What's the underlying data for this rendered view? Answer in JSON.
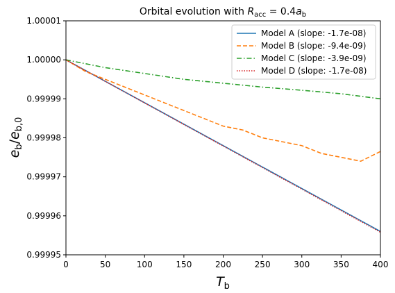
{
  "chart_data": {
    "type": "line",
    "title_prefix": "Orbital evolution with ",
    "title_math": "R_acc = 0.4a_b",
    "xlabel": "T_b",
    "ylabel": "e_b/e_b,0",
    "xlim": [
      0,
      400
    ],
    "ylim": [
      0.99995,
      1.00001
    ],
    "xticks": [
      0,
      50,
      100,
      150,
      200,
      250,
      300,
      350,
      400
    ],
    "yticks": [
      0.99995,
      0.99996,
      0.99997,
      0.99998,
      0.99999,
      1.0,
      1.00001
    ],
    "ytick_labels": [
      "0.99995",
      "0.99996",
      "0.99997",
      "0.99998",
      "0.99999",
      "1.00000",
      "1.00001"
    ],
    "grid": false,
    "legend_position": "top-right",
    "series": [
      {
        "name": "Model A (slope: -1.7e-08)",
        "color": "#1f77b4",
        "style": "solid",
        "x": [
          0,
          400
        ],
        "y": [
          1.0,
          0.999956
        ]
      },
      {
        "name": "Model B (slope: -9.4e-09)",
        "color": "#ff7f0e",
        "style": "dashed",
        "x": [
          0,
          25,
          50,
          75,
          100,
          125,
          150,
          175,
          200,
          225,
          250,
          275,
          300,
          325,
          350,
          375,
          400
        ],
        "y": [
          1.0,
          0.999997,
          0.999995,
          0.999993,
          0.999991,
          0.999989,
          0.999987,
          0.999985,
          0.999983,
          0.999982,
          0.99998,
          0.999979,
          0.999978,
          0.999976,
          0.999975,
          0.999974,
          0.9999765
        ]
      },
      {
        "name": "Model C (slope: -3.9e-09)",
        "color": "#2ca02c",
        "style": "dashdot",
        "x": [
          0,
          50,
          100,
          150,
          200,
          250,
          300,
          350,
          400
        ],
        "y": [
          1.0,
          0.999998,
          0.9999965,
          0.999995,
          0.999994,
          0.999993,
          0.9999922,
          0.9999913,
          0.99999
        ]
      },
      {
        "name": "Model D (slope: -1.7e-08)",
        "color": "#d62728",
        "style": "dotted",
        "x": [
          0,
          400
        ],
        "y": [
          1.0,
          0.9999558
        ]
      }
    ]
  }
}
